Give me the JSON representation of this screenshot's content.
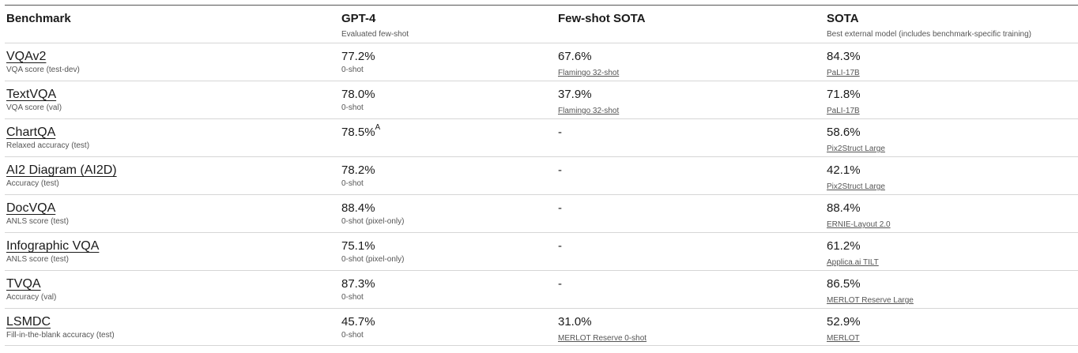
{
  "headers": [
    {
      "title": "Benchmark",
      "subtitle": ""
    },
    {
      "title": "GPT-4",
      "subtitle": "Evaluated few-shot"
    },
    {
      "title": "Few-shot SOTA",
      "subtitle": ""
    },
    {
      "title": "SOTA",
      "subtitle": "Best external model (includes benchmark-specific training)"
    }
  ],
  "rows": [
    {
      "benchmark": "VQAv2",
      "metric": "VQA score (test-dev)",
      "gpt4": "77.2%",
      "gpt4_sup": "",
      "gpt4_note": "0-shot",
      "fewshot": "67.6%",
      "fewshot_model": "Flamingo 32-shot",
      "sota": "84.3%",
      "sota_model": "PaLI-17B"
    },
    {
      "benchmark": "TextVQA",
      "metric": "VQA score (val)",
      "gpt4": "78.0%",
      "gpt4_sup": "",
      "gpt4_note": "0-shot",
      "fewshot": "37.9%",
      "fewshot_model": "Flamingo 32-shot",
      "sota": "71.8%",
      "sota_model": "PaLI-17B"
    },
    {
      "benchmark": "ChartQA",
      "metric": "Relaxed accuracy (test)",
      "gpt4": "78.5%",
      "gpt4_sup": "A",
      "gpt4_note": "",
      "fewshot": "-",
      "fewshot_model": "",
      "sota": "58.6%",
      "sota_model": "Pix2Struct Large"
    },
    {
      "benchmark": "AI2 Diagram (AI2D)",
      "metric": "Accuracy (test)",
      "gpt4": "78.2%",
      "gpt4_sup": "",
      "gpt4_note": "0-shot",
      "fewshot": "-",
      "fewshot_model": "",
      "sota": "42.1%",
      "sota_model": "Pix2Struct Large"
    },
    {
      "benchmark": "DocVQA",
      "metric": "ANLS score (test)",
      "gpt4": "88.4%",
      "gpt4_sup": "",
      "gpt4_note": "0-shot (pixel-only)",
      "fewshot": "-",
      "fewshot_model": "",
      "sota": "88.4%",
      "sota_model": "ERNIE-Layout 2.0"
    },
    {
      "benchmark": "Infographic VQA",
      "metric": "ANLS score (test)",
      "gpt4": "75.1%",
      "gpt4_sup": "",
      "gpt4_note": "0-shot (pixel-only)",
      "fewshot": "-",
      "fewshot_model": "",
      "sota": "61.2%",
      "sota_model": "Applica.ai TILT"
    },
    {
      "benchmark": "TVQA",
      "metric": "Accuracy (val)",
      "gpt4": "87.3%",
      "gpt4_sup": "",
      "gpt4_note": "0-shot",
      "fewshot": "-",
      "fewshot_model": "",
      "sota": "86.5%",
      "sota_model": "MERLOT Reserve Large"
    },
    {
      "benchmark": "LSMDC",
      "metric": "Fill-in-the-blank accuracy (test)",
      "gpt4": "45.7%",
      "gpt4_sup": "",
      "gpt4_note": "0-shot",
      "fewshot": "31.0%",
      "fewshot_model": "MERLOT Reserve 0-shot",
      "sota": "52.9%",
      "sota_model": "MERLOT"
    }
  ]
}
